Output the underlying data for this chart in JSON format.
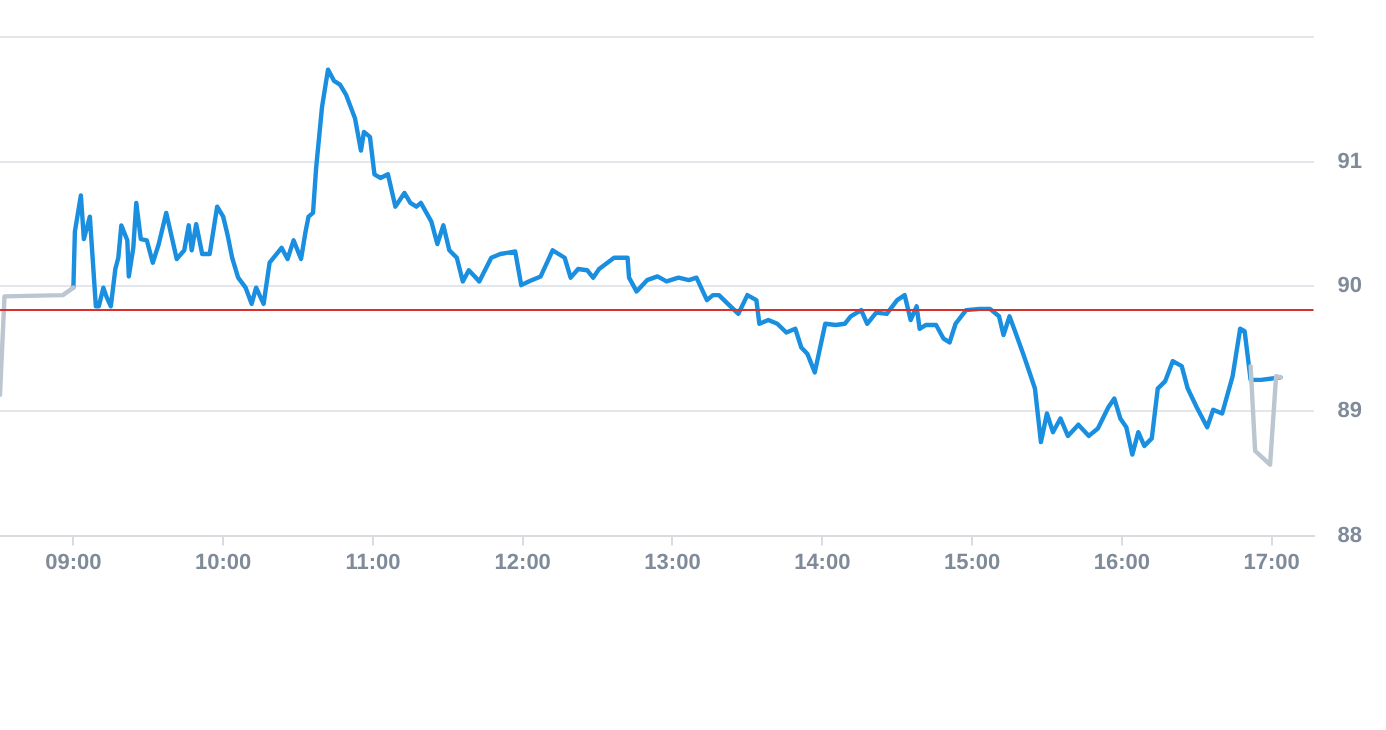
{
  "chart_data": {
    "type": "line",
    "xlim": [
      8.51,
      17.28
    ],
    "ylim": [
      88,
      92
    ],
    "xticks": [
      {
        "value": 9,
        "label": "09:00"
      },
      {
        "value": 10,
        "label": "10:00"
      },
      {
        "value": 11,
        "label": "11:00"
      },
      {
        "value": 12,
        "label": "12:00"
      },
      {
        "value": 13,
        "label": "13:00"
      },
      {
        "value": 14,
        "label": "14:00"
      },
      {
        "value": 15,
        "label": "15:00"
      },
      {
        "value": 16,
        "label": "16:00"
      },
      {
        "value": 17,
        "label": "17:00"
      }
    ],
    "yticks": [
      88,
      89,
      90,
      91,
      {
        "value": 92,
        "label": null
      }
    ],
    "grid": "y",
    "legend": false,
    "marker": "none",
    "line_style": "solid",
    "ref_lines": [
      {
        "axis": "y",
        "value": 89.81,
        "color": "#d9302c"
      }
    ],
    "series": [
      {
        "color": "#bcc6d0",
        "x": [
          8.51,
          8.54,
          8.93,
          9.0,
          12.9,
          16.86,
          16.89,
          16.99,
          17.03,
          17.06
        ],
        "values": [
          89.13,
          89.92,
          89.93,
          89.99,
          null,
          89.36,
          88.68,
          88.57,
          89.28,
          89.27
        ]
      },
      {
        "color": "#1a8fe0",
        "x": [
          9.0,
          9.01,
          9.05,
          9.07,
          9.11,
          9.12,
          9.15,
          9.17,
          9.2,
          9.22,
          9.25,
          9.28,
          9.3,
          9.32,
          9.36,
          9.37,
          9.4,
          9.42,
          9.45,
          9.49,
          9.53,
          9.57,
          9.62,
          9.69,
          9.74,
          9.77,
          9.79,
          9.82,
          9.86,
          9.91,
          9.96,
          10.0,
          10.03,
          10.06,
          10.1,
          10.15,
          10.19,
          10.22,
          10.27,
          10.31,
          10.39,
          10.43,
          10.47,
          10.52,
          10.55,
          10.57,
          10.6,
          10.62,
          10.66,
          10.7,
          10.74,
          10.78,
          10.82,
          10.88,
          10.92,
          10.94,
          10.98,
          11.01,
          11.05,
          11.1,
          11.15,
          11.21,
          11.25,
          11.29,
          11.32,
          11.39,
          11.43,
          11.47,
          11.51,
          11.56,
          11.6,
          11.64,
          11.68,
          11.71,
          11.79,
          11.85,
          11.95,
          11.99,
          12.04,
          12.12,
          12.2,
          12.28,
          12.32,
          12.37,
          12.43,
          12.47,
          12.51,
          12.61,
          12.7,
          12.71,
          12.76,
          12.83,
          12.9,
          12.96,
          13.04,
          13.11,
          13.16,
          13.23,
          13.27,
          13.31,
          13.37,
          13.44,
          13.5,
          13.56,
          13.58,
          13.64,
          13.7,
          13.76,
          13.82,
          13.86,
          13.9,
          13.95,
          14.02,
          14.09,
          14.15,
          14.19,
          14.26,
          14.3,
          14.36,
          14.43,
          14.5,
          14.55,
          14.59,
          14.63,
          14.65,
          14.69,
          14.76,
          14.81,
          14.85,
          14.89,
          14.96,
          15.05,
          15.12,
          15.18,
          15.21,
          15.25,
          15.29,
          15.35,
          15.42,
          15.46,
          15.5,
          15.54,
          15.59,
          15.64,
          15.71,
          15.78,
          15.84,
          15.91,
          15.95,
          15.99,
          16.03,
          16.07,
          16.11,
          16.15,
          16.2,
          16.24,
          16.29,
          16.34,
          16.4,
          16.44,
          16.5,
          16.57,
          16.61,
          16.67,
          16.74,
          16.79,
          16.82,
          16.86,
          16.93,
          17.06
        ],
        "values": [
          89.99,
          90.44,
          90.73,
          90.38,
          90.56,
          90.38,
          89.84,
          89.84,
          89.99,
          89.92,
          89.84,
          90.14,
          90.23,
          90.49,
          90.37,
          90.08,
          90.31,
          90.67,
          90.38,
          90.37,
          90.19,
          90.34,
          90.59,
          90.22,
          90.29,
          90.49,
          90.29,
          90.5,
          90.26,
          90.26,
          90.64,
          90.56,
          90.41,
          90.23,
          90.07,
          89.99,
          89.86,
          89.99,
          89.86,
          90.19,
          90.31,
          90.22,
          90.37,
          90.22,
          90.44,
          90.56,
          90.59,
          90.94,
          91.44,
          91.74,
          91.65,
          91.62,
          91.54,
          91.35,
          91.09,
          91.24,
          91.2,
          90.9,
          90.87,
          90.9,
          90.64,
          90.75,
          90.67,
          90.64,
          90.67,
          90.52,
          90.34,
          90.49,
          90.29,
          90.23,
          90.04,
          90.13,
          90.08,
          90.04,
          90.23,
          90.26,
          90.28,
          90.01,
          90.04,
          90.08,
          90.29,
          90.23,
          90.07,
          90.14,
          90.13,
          90.07,
          90.14,
          90.23,
          90.23,
          90.07,
          89.96,
          90.05,
          90.08,
          90.04,
          90.07,
          90.05,
          90.07,
          89.89,
          89.93,
          89.93,
          89.86,
          89.78,
          89.93,
          89.89,
          89.7,
          89.73,
          89.7,
          89.63,
          89.66,
          89.51,
          89.46,
          89.31,
          89.7,
          89.69,
          89.7,
          89.76,
          89.81,
          89.7,
          89.79,
          89.78,
          89.89,
          89.93,
          89.73,
          89.84,
          89.66,
          89.69,
          89.69,
          89.58,
          89.55,
          89.7,
          89.81,
          89.82,
          89.82,
          89.76,
          89.61,
          89.76,
          89.63,
          89.43,
          89.18,
          88.75,
          88.98,
          88.83,
          88.94,
          88.8,
          88.89,
          88.8,
          88.86,
          89.03,
          89.1,
          88.94,
          88.87,
          88.65,
          88.83,
          88.72,
          88.78,
          89.18,
          89.24,
          89.4,
          89.36,
          89.18,
          89.03,
          88.87,
          89.01,
          88.98,
          89.28,
          89.66,
          89.64,
          89.25,
          89.25,
          89.27
        ]
      }
    ]
  }
}
